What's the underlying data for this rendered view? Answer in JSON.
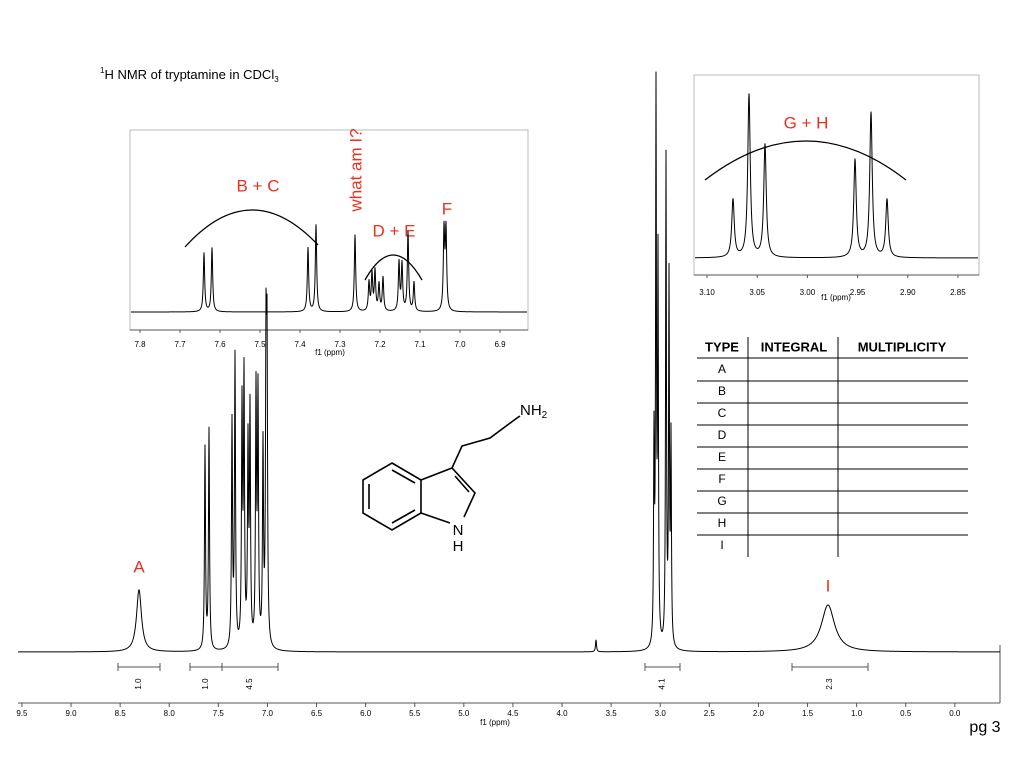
{
  "title": {
    "sup": "1",
    "text": "H NMR of tryptamine in CDCl",
    "sub": "3"
  },
  "main_spectrum": {
    "xlim": [
      9.54,
      -0.46
    ],
    "xticks": [
      9.5,
      {
        "value": 9,
        "label": "9.0"
      },
      8.5,
      {
        "value": 8,
        "label": "8.0"
      },
      7.5,
      {
        "value": 7,
        "label": "7.0"
      },
      6.5,
      {
        "value": 6,
        "label": "6.0"
      },
      5.5,
      {
        "value": 5,
        "label": "5.0"
      },
      4.5,
      {
        "value": 4,
        "label": "4.0"
      },
      3.5,
      {
        "value": 3,
        "label": "3.0"
      },
      2.5,
      {
        "value": 2,
        "label": "2.0"
      },
      1.5,
      {
        "value": 1,
        "label": "1.0"
      },
      0.5,
      {
        "value": 0,
        "label": "0.0"
      }
    ],
    "xlabel": "f1 (ppm)",
    "peak_labels": [
      "A",
      "I"
    ],
    "integrals": [
      "1.0",
      "1.0",
      "4.5",
      "4.1",
      "2.3"
    ]
  },
  "inset_aromatic": {
    "xlim": [
      7.825,
      6.83
    ],
    "xticks": [
      7.8,
      7.7,
      7.6,
      7.5,
      7.4,
      7.3,
      7.2,
      7.1,
      {
        "value": 7,
        "label": "7.0"
      },
      6.9
    ],
    "xlabel": "f1 (ppm)",
    "labels": [
      "B + C",
      "what am I?",
      "D + E",
      "F"
    ]
  },
  "inset_aliphatic": {
    "xlim": [
      3.113,
      2.829
    ],
    "xticks": [
      {
        "value": 3.1,
        "label": "3.10"
      },
      3.05,
      {
        "value": 3,
        "label": "3.00"
      },
      2.95,
      {
        "value": 2.9,
        "label": "2.90"
      },
      2.85
    ],
    "xlabel": "f1 (ppm)",
    "labels": [
      "G + H"
    ]
  },
  "molecule": {
    "amine": {
      "text": "NH",
      "sub": "2"
    },
    "ring_n": "N",
    "ring_h": "H"
  },
  "table": {
    "header": [
      "TYPE",
      "INTEGRAL",
      "MULTIPLICITY"
    ],
    "rows": [
      "A",
      "B",
      "C",
      "D",
      "E",
      "F",
      "G",
      "H",
      "I"
    ]
  },
  "page_number": "pg 3"
}
